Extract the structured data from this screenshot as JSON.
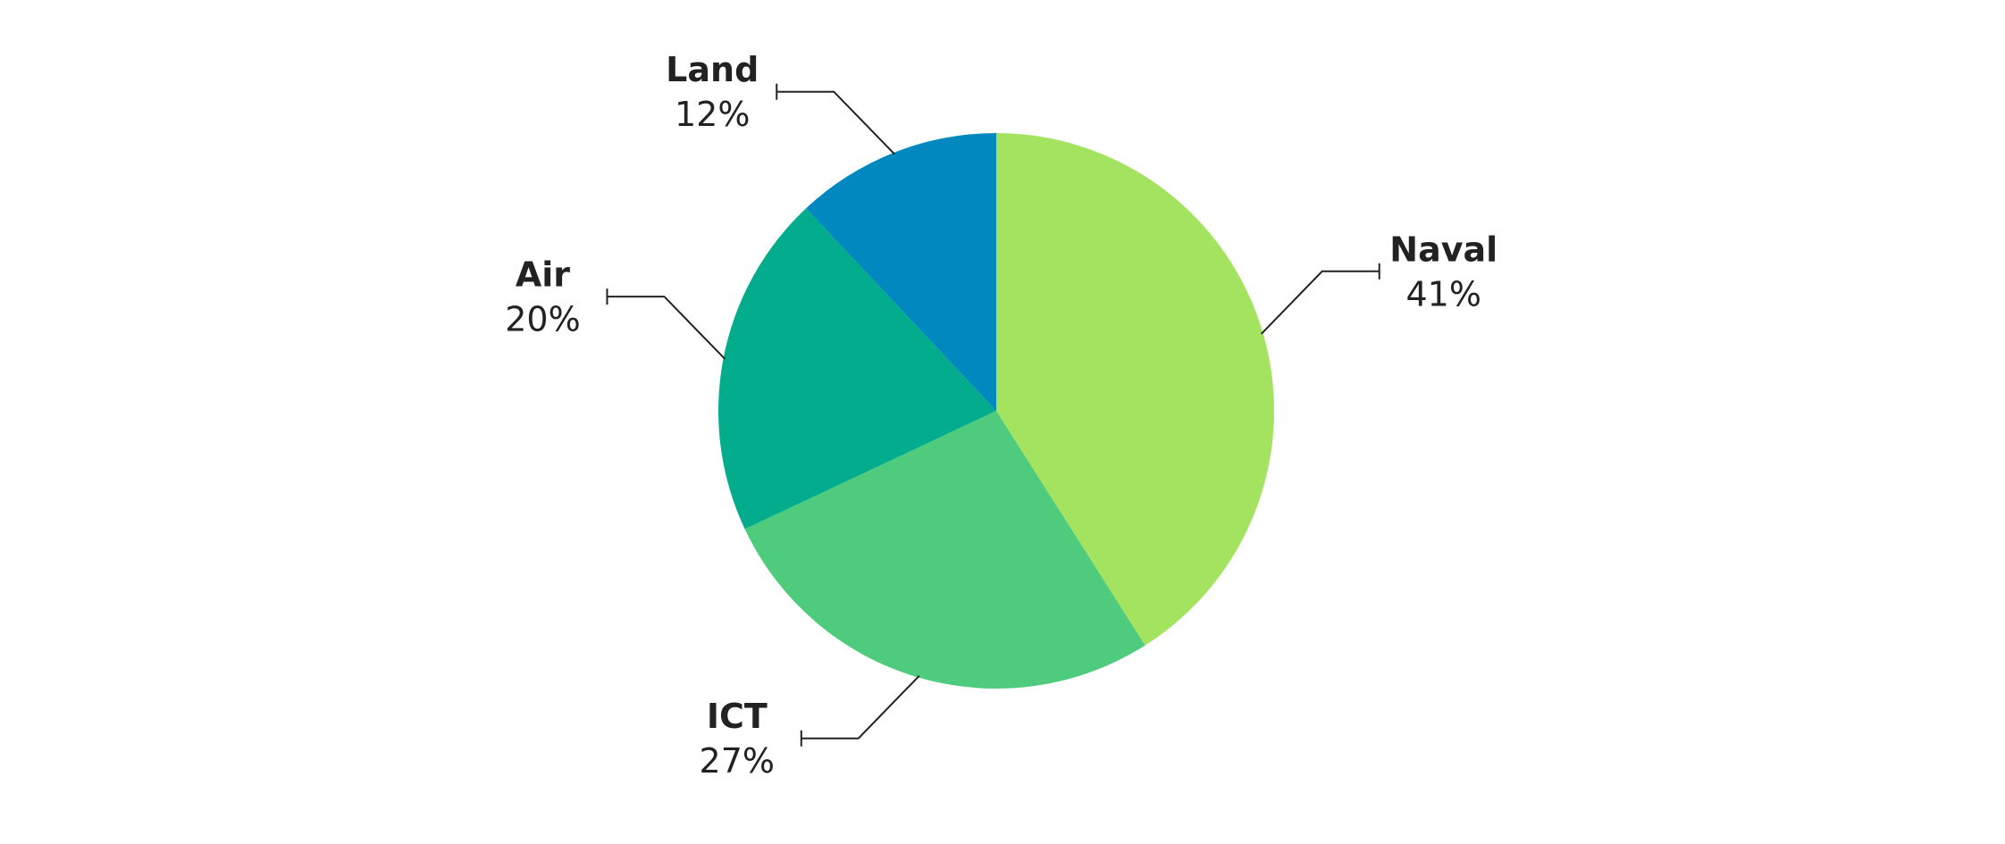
{
  "chart_data": {
    "type": "pie",
    "categories": [
      "Naval",
      "ICT",
      "Air",
      "Land"
    ],
    "values": [
      41,
      27,
      20,
      12
    ],
    "value_labels": [
      "41%",
      "27%",
      "20%",
      "12%"
    ],
    "colors": [
      "#a3e35f",
      "#4ecb7c",
      "#02ac8d",
      "#0088bf"
    ]
  }
}
